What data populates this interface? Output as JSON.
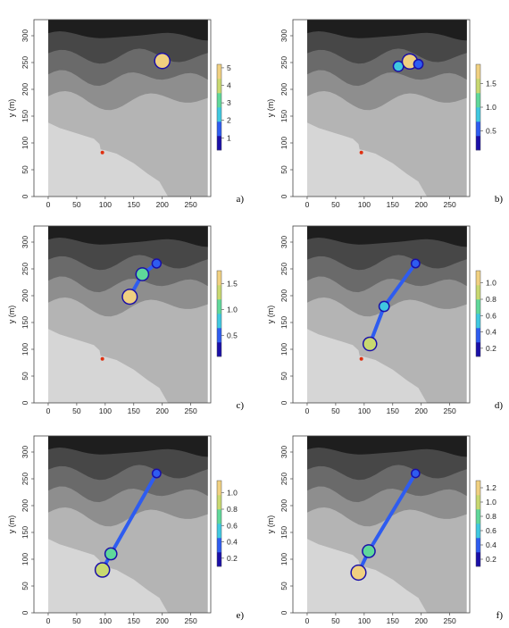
{
  "figure": {
    "panels": [
      {
        "tag": "a)",
        "xlabel": "x (m)",
        "ylabel": "y (m)",
        "xticks": [
          "0",
          "50",
          "100",
          "150",
          "200",
          "250"
        ],
        "yticks": [
          "0",
          "50",
          "100",
          "150",
          "200",
          "250",
          "300"
        ],
        "legend_ticks": [
          "1",
          "2",
          "3",
          "4",
          "5"
        ]
      },
      {
        "tag": "b)",
        "xlabel": "x (m)",
        "ylabel": "y (m)",
        "xticks": [
          "0",
          "50",
          "100",
          "150",
          "200",
          "250"
        ],
        "yticks": [
          "0",
          "50",
          "100",
          "150",
          "200",
          "250",
          "300"
        ],
        "legend_ticks": [
          "0.5",
          "1.0",
          "1.5"
        ]
      },
      {
        "tag": "c)",
        "xlabel": "x (m)",
        "ylabel": "y (m)",
        "xticks": [
          "0",
          "50",
          "100",
          "150",
          "200",
          "250"
        ],
        "yticks": [
          "0",
          "50",
          "100",
          "150",
          "200",
          "250",
          "300"
        ],
        "legend_ticks": [
          "0.5",
          "1.0",
          "1.5"
        ]
      },
      {
        "tag": "d)",
        "xlabel": "x (m)",
        "ylabel": "y (m)",
        "xticks": [
          "0",
          "50",
          "100",
          "150",
          "200",
          "250"
        ],
        "yticks": [
          "0",
          "50",
          "100",
          "150",
          "200",
          "250",
          "300"
        ],
        "legend_ticks": [
          "0.2",
          "0.4",
          "0.6",
          "0.8",
          "1.0"
        ]
      },
      {
        "tag": "e)",
        "xlabel": "x (m)",
        "ylabel": "y (m)",
        "xticks": [
          "0",
          "50",
          "100",
          "150",
          "200",
          "250"
        ],
        "yticks": [
          "0",
          "50",
          "100",
          "150",
          "200",
          "250",
          "300"
        ],
        "legend_ticks": [
          "0.2",
          "0.4",
          "0.6",
          "0.8",
          "1.0"
        ]
      },
      {
        "tag": "f)",
        "xlabel": "x (m)",
        "ylabel": "y (m)",
        "xticks": [
          "0",
          "50",
          "100",
          "150",
          "200",
          "250"
        ],
        "yticks": [
          "0",
          "50",
          "100",
          "150",
          "200",
          "250",
          "300"
        ],
        "legend_ticks": [
          "0.2",
          "0.4",
          "0.6",
          "0.8",
          "1.0",
          "1.2"
        ]
      }
    ]
  },
  "colors": {
    "terrain_levels": [
      "#d6d6d6",
      "#b4b4b4",
      "#8e8e8e",
      "#6a6a6a",
      "#474747",
      "#1e1e1e"
    ],
    "flow_ramp": [
      "#1a0fa8",
      "#2e5cf0",
      "#3fc8e0",
      "#5fd89a",
      "#c8d870",
      "#f0d080"
    ],
    "source_point": "#e03010"
  },
  "chart_data": [
    {
      "type": "heatmap",
      "panel": "a)",
      "xlim": [
        -25,
        285
      ],
      "ylim": [
        0,
        330
      ],
      "legend_range": [
        0.3,
        5.2
      ],
      "legend_ticks": [
        1,
        2,
        3,
        4,
        5
      ],
      "source_point": {
        "x": 95,
        "y": 82
      },
      "flow": [
        {
          "x": 200,
          "y": 253,
          "value": 5.0
        }
      ],
      "grid": false
    },
    {
      "type": "heatmap",
      "panel": "b)",
      "xlim": [
        -25,
        285
      ],
      "ylim": [
        0,
        330
      ],
      "legend_range": [
        0.1,
        1.9
      ],
      "legend_ticks": [
        0.5,
        1.0,
        1.5
      ],
      "source_point": {
        "x": 95,
        "y": 82
      },
      "flow": [
        {
          "x": 160,
          "y": 243,
          "value": 0.8
        },
        {
          "x": 180,
          "y": 252,
          "value": 1.8
        },
        {
          "x": 195,
          "y": 247,
          "value": 0.6
        }
      ],
      "grid": false
    },
    {
      "type": "heatmap",
      "panel": "c)",
      "xlim": [
        -25,
        285
      ],
      "ylim": [
        0,
        330
      ],
      "legend_range": [
        0.1,
        1.75
      ],
      "legend_ticks": [
        0.5,
        1.0,
        1.5
      ],
      "source_point": {
        "x": 95,
        "y": 82
      },
      "flow": [
        {
          "x": 143,
          "y": 198,
          "value": 1.6
        },
        {
          "x": 165,
          "y": 240,
          "value": 1.2
        },
        {
          "x": 190,
          "y": 260,
          "value": 0.5
        }
      ],
      "grid": false
    },
    {
      "type": "heatmap",
      "panel": "d)",
      "xlim": [
        -25,
        285
      ],
      "ylim": [
        0,
        330
      ],
      "legend_range": [
        0.1,
        1.15
      ],
      "legend_ticks": [
        0.2,
        0.4,
        0.6,
        0.8,
        1.0
      ],
      "source_point": {
        "x": 95,
        "y": 82
      },
      "flow": [
        {
          "x": 110,
          "y": 110,
          "value": 0.9
        },
        {
          "x": 135,
          "y": 180,
          "value": 0.5
        },
        {
          "x": 190,
          "y": 260,
          "value": 0.3
        }
      ],
      "grid": false
    },
    {
      "type": "heatmap",
      "panel": "e)",
      "xlim": [
        -25,
        285
      ],
      "ylim": [
        0,
        330
      ],
      "legend_range": [
        0.1,
        1.15
      ],
      "legend_ticks": [
        0.2,
        0.4,
        0.6,
        0.8,
        1.0
      ],
      "flow": [
        {
          "x": 95,
          "y": 80,
          "value": 1.0
        },
        {
          "x": 110,
          "y": 110,
          "value": 0.7
        },
        {
          "x": 190,
          "y": 260,
          "value": 0.3
        }
      ],
      "grid": false
    },
    {
      "type": "heatmap",
      "panel": "f)",
      "xlim": [
        -25,
        285
      ],
      "ylim": [
        0,
        330
      ],
      "legend_range": [
        0.1,
        1.3
      ],
      "legend_ticks": [
        0.2,
        0.4,
        0.6,
        0.8,
        1.0,
        1.2
      ],
      "flow": [
        {
          "x": 90,
          "y": 75,
          "value": 1.2
        },
        {
          "x": 108,
          "y": 115,
          "value": 0.9
        },
        {
          "x": 190,
          "y": 260,
          "value": 0.3
        }
      ],
      "grid": false
    }
  ]
}
